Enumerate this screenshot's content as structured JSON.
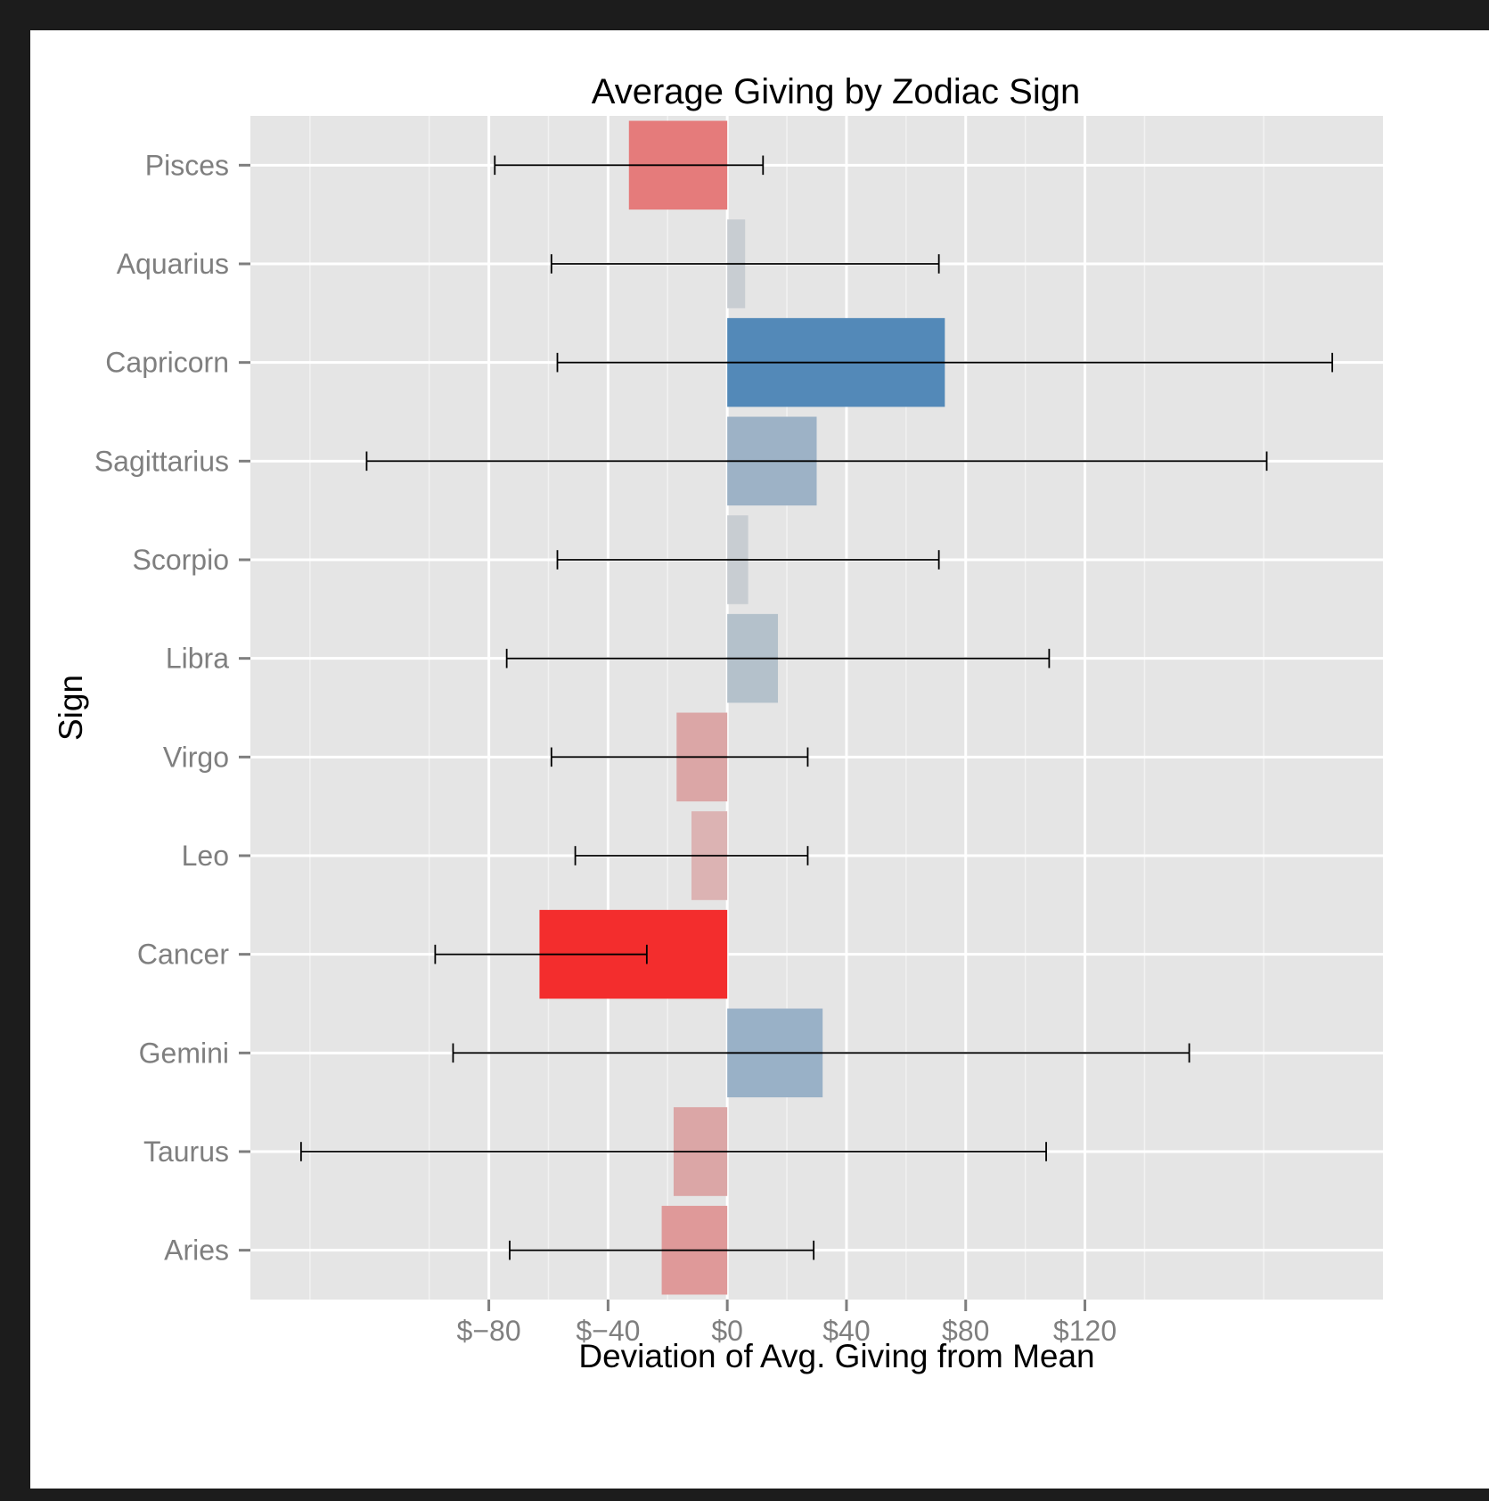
{
  "chart_data": {
    "type": "bar",
    "orientation": "horizontal",
    "title": "Average Giving by Zodiac Sign",
    "xlabel": "Deviation of Avg. Giving from Mean",
    "ylabel": "Sign",
    "xlim": [
      -160,
      220
    ],
    "xticks": [
      -80,
      -40,
      0,
      40,
      80,
      120
    ],
    "xtick_labels": [
      "$−80",
      "$−40",
      "$0",
      "$40",
      "$80",
      "$120"
    ],
    "categories": [
      "Pisces",
      "Aquarius",
      "Capricorn",
      "Sagittarius",
      "Scorpio",
      "Libra",
      "Virgo",
      "Leo",
      "Cancer",
      "Gemini",
      "Taurus",
      "Aries"
    ],
    "values": [
      -33,
      6,
      73,
      30,
      7,
      17,
      -17,
      -12,
      -63,
      32,
      -18,
      -22
    ],
    "error_low": [
      -78,
      -59,
      -57,
      -121,
      -57,
      -74,
      -59,
      -51,
      -98,
      -92,
      -143,
      -73
    ],
    "error_high": [
      12,
      71,
      203,
      181,
      71,
      108,
      27,
      27,
      -27,
      155,
      107,
      29
    ],
    "colors": [
      "#e57b7b",
      "#c8cdd2",
      "#5389b8",
      "#9db2c6",
      "#c8cdd2",
      "#b4c1cb",
      "#dba6a6",
      "#dcb3b3",
      "#f32d2d",
      "#99b1c7",
      "#dba6a6",
      "#df9999"
    ],
    "grid": true,
    "legend": "none"
  }
}
